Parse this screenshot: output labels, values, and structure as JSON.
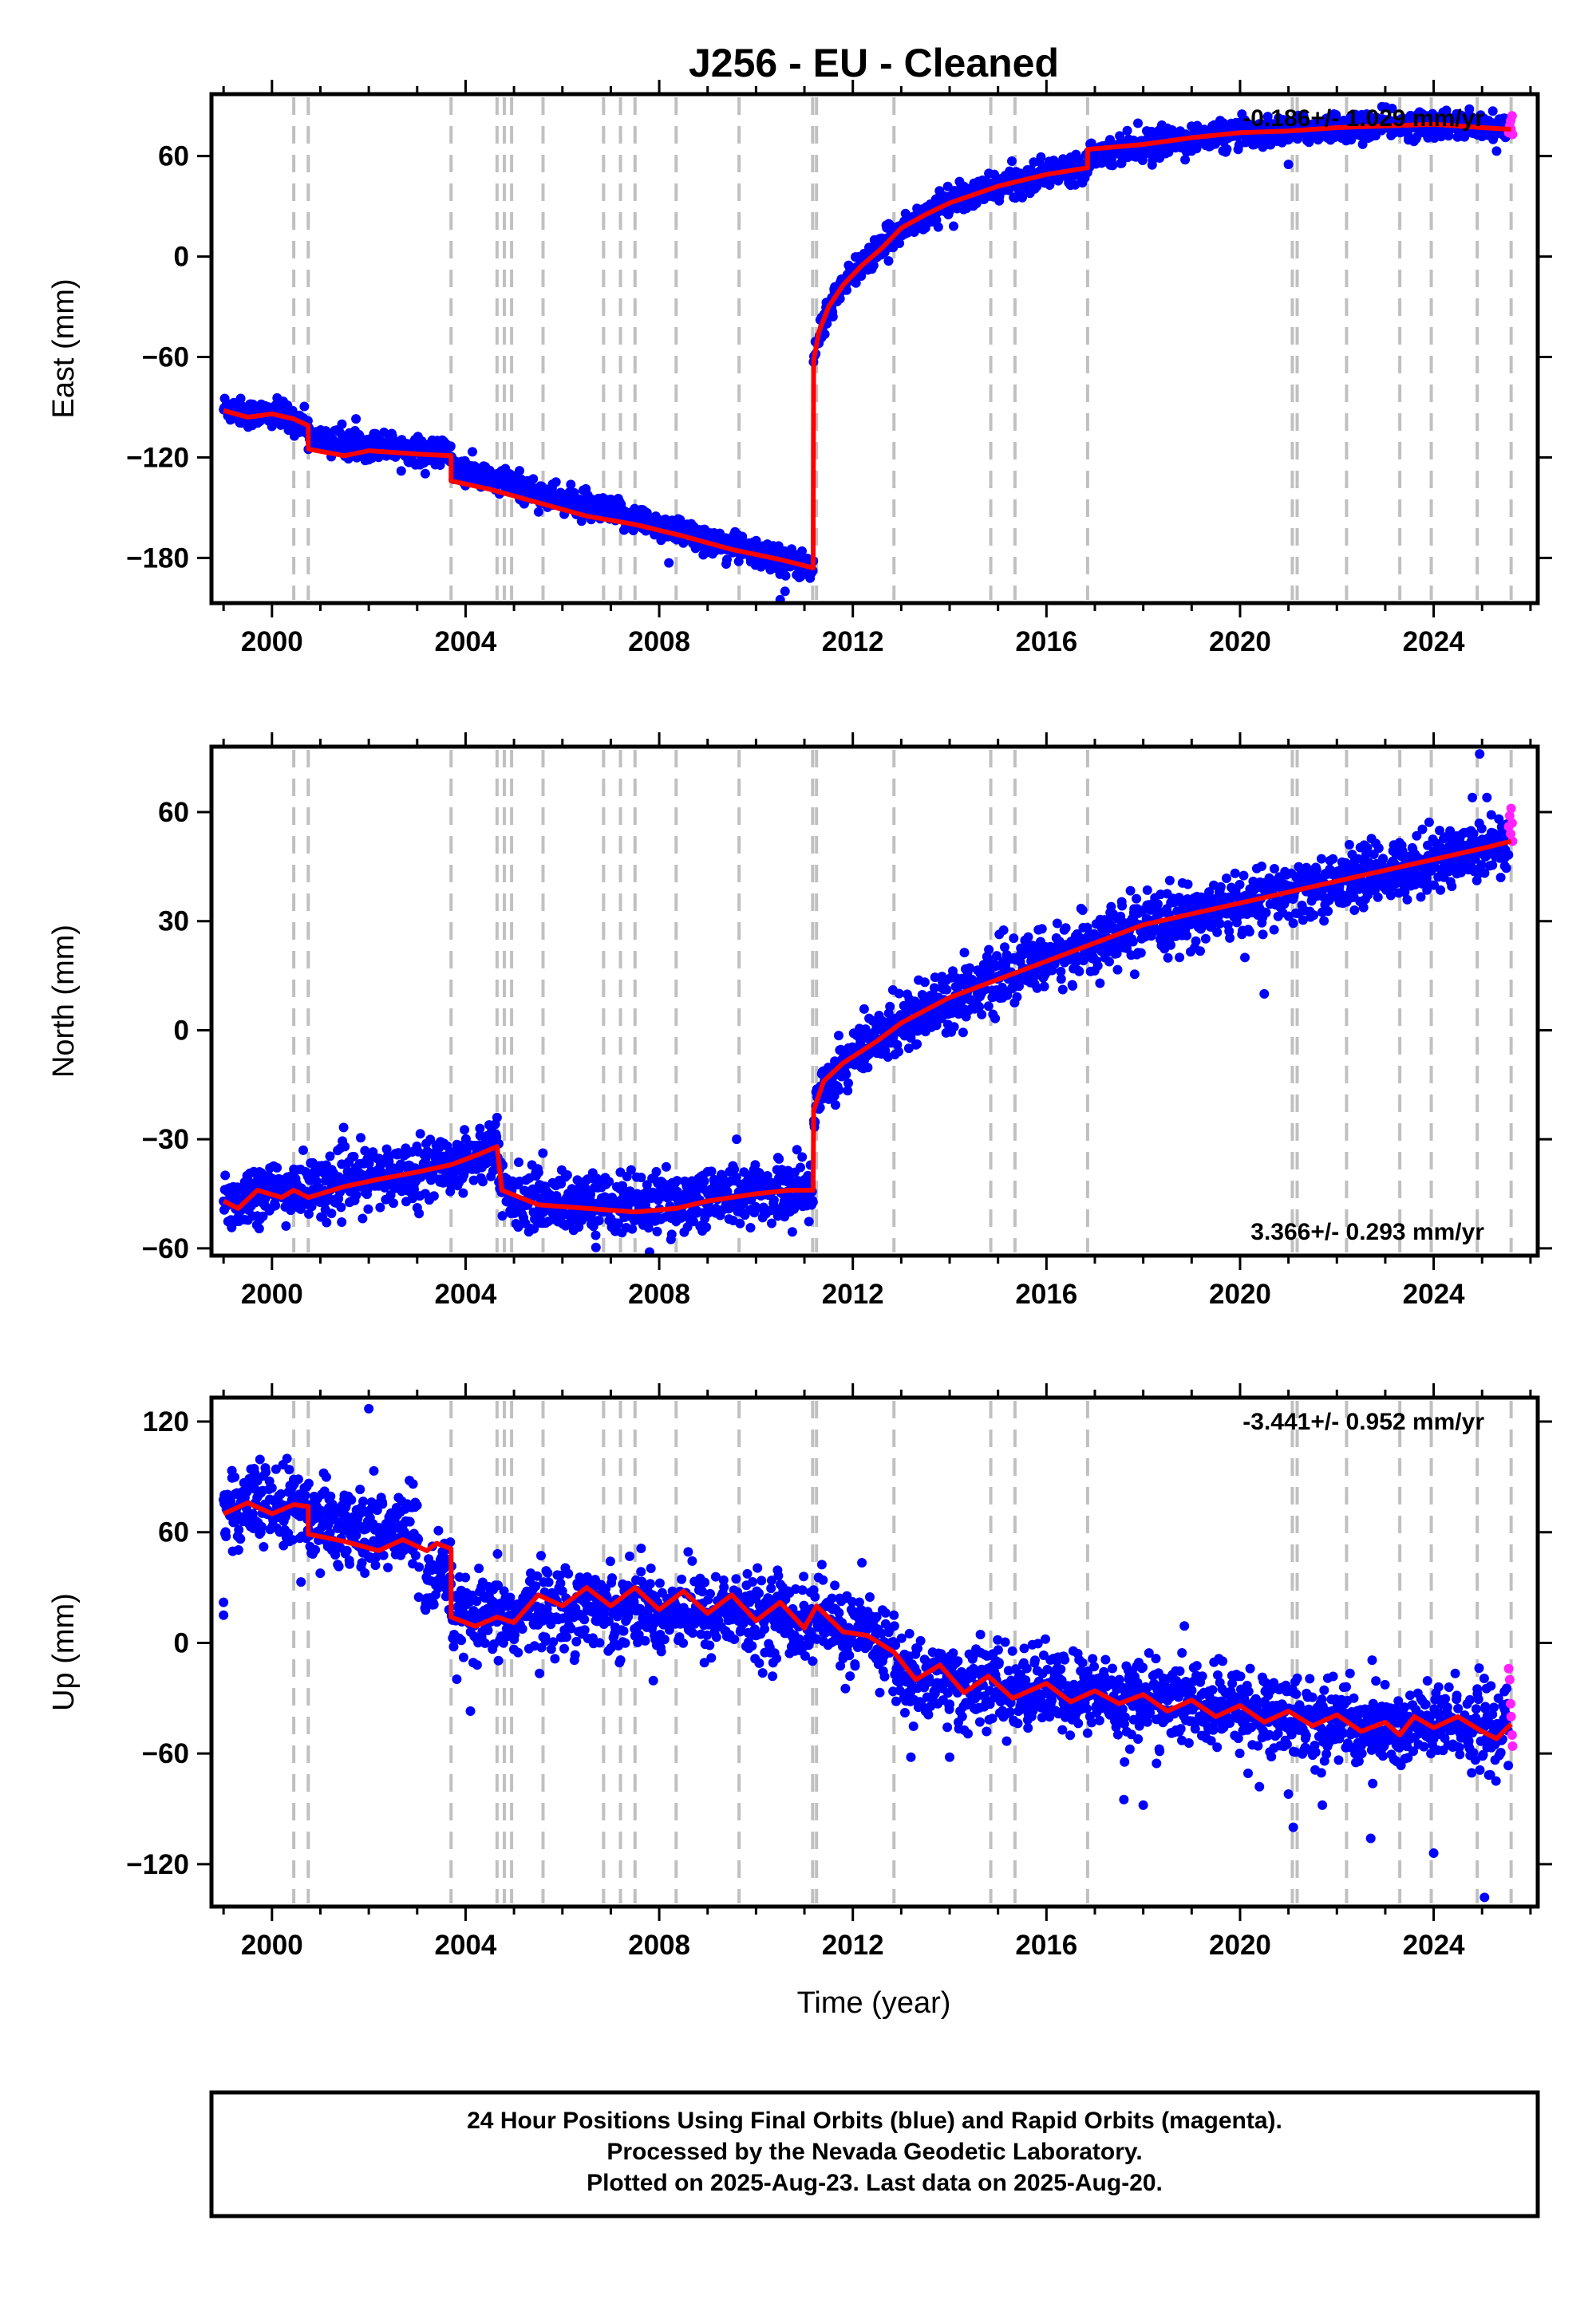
{
  "title": "J256  - EU - Cleaned",
  "xlabel": "Time (year)",
  "caption": {
    "line1": "24 Hour Positions Using Final Orbits (blue) and Rapid Orbits (magenta).",
    "line2": "Processed by the Nevada Geodetic Laboratory.",
    "line3": "Plotted on 2025-Aug-23. Last data on 2025-Aug-20."
  },
  "colors": {
    "final": "#0000ff",
    "rapid": "#ff22ff",
    "model": "#ff0000",
    "events": "#c0c0c0"
  },
  "chart_data": [
    {
      "type": "scatter",
      "name": "east",
      "ylabel": "East (mm)",
      "rate": "-0.186+/- 1.029 mm/yr",
      "rate_position": "top-right",
      "xlim": [
        1998.75,
        2026.15
      ],
      "ylim": [
        -207,
        97
      ],
      "xticks": [
        "2000",
        "2004",
        "2008",
        "2012",
        "2016",
        "2020",
        "2024"
      ],
      "yticks": [
        "60",
        "0",
        "−60",
        "−120",
        "−180"
      ],
      "ytick_values": [
        60,
        0,
        -60,
        -120,
        -180
      ],
      "event_lines": [
        2000.45,
        2000.75,
        2003.7,
        2004.65,
        2004.8,
        2004.95,
        2005.6,
        2006.85,
        2007.2,
        2007.5,
        2008.35,
        2009.65,
        2011.17,
        2011.25,
        2012.85,
        2014.85,
        2015.35,
        2016.85,
        2021.08,
        2021.18,
        2022.2,
        2023.3,
        2023.95,
        2024.9,
        2025.6
      ],
      "model": [
        [
          1999.0,
          -92
        ],
        [
          1999.5,
          -96
        ],
        [
          2000.0,
          -94
        ],
        [
          2000.45,
          -97
        ],
        [
          2000.75,
          -101
        ],
        [
          2000.75,
          -115
        ],
        [
          2001.5,
          -119
        ],
        [
          2002.0,
          -116
        ],
        [
          2003.0,
          -118
        ],
        [
          2003.7,
          -119
        ],
        [
          2003.7,
          -134
        ],
        [
          2004.5,
          -139
        ],
        [
          2005.5,
          -147
        ],
        [
          2006.5,
          -155
        ],
        [
          2007.5,
          -160
        ],
        [
          2008.5,
          -167
        ],
        [
          2009.5,
          -175
        ],
        [
          2010.5,
          -181
        ],
        [
          2011.18,
          -186
        ],
        [
          2011.19,
          -62
        ],
        [
          2011.3,
          -45
        ],
        [
          2011.5,
          -30
        ],
        [
          2011.8,
          -17
        ],
        [
          2012.2,
          -5
        ],
        [
          2012.6,
          5
        ],
        [
          2013.0,
          17
        ],
        [
          2013.5,
          25
        ],
        [
          2014.0,
          32
        ],
        [
          2015.0,
          42
        ],
        [
          2016.0,
          49
        ],
        [
          2016.85,
          53
        ],
        [
          2016.85,
          64
        ],
        [
          2018.0,
          67
        ],
        [
          2019.0,
          71
        ],
        [
          2020.0,
          74
        ],
        [
          2021.0,
          75
        ],
        [
          2022.0,
          77
        ],
        [
          2023.0,
          78
        ],
        [
          2024.0,
          79
        ],
        [
          2025.0,
          77
        ],
        [
          2025.6,
          76
        ]
      ],
      "scatter_model": [
        [
          1999.0,
          -88
        ],
        [
          2000.75,
          -100
        ],
        [
          2003.7,
          -117
        ],
        [
          2011.18,
          -187
        ],
        [
          2011.19,
          -62
        ],
        [
          2011.5,
          -30
        ],
        [
          2012.0,
          -10
        ],
        [
          2013.0,
          17
        ],
        [
          2014.0,
          33
        ],
        [
          2016.0,
          50
        ],
        [
          2018.0,
          66
        ],
        [
          2020.0,
          73
        ],
        [
          2022.0,
          77
        ],
        [
          2024.0,
          80
        ],
        [
          2025.6,
          76
        ]
      ],
      "noise": 4,
      "outliers": [
        [
          2010.5,
          -205
        ],
        [
          2010.6,
          -200
        ],
        [
          2008.2,
          -183
        ],
        [
          2021.0,
          55
        ],
        [
          2025.3,
          63
        ],
        [
          2004.8,
          -131
        ],
        [
          2009.4,
          -181
        ]
      ],
      "rapid": [
        [
          2025.55,
          74
        ],
        [
          2025.57,
          78
        ],
        [
          2025.59,
          81
        ],
        [
          2025.6,
          76
        ],
        [
          2025.62,
          84
        ],
        [
          2025.63,
          73
        ]
      ]
    },
    {
      "type": "scatter",
      "name": "north",
      "ylabel": "North (mm)",
      "rate": "3.366+/- 0.293 mm/yr",
      "rate_position": "bottom-right",
      "xlim": [
        1998.75,
        2026.15
      ],
      "ylim": [
        -62,
        78
      ],
      "xticks": [
        "2000",
        "2004",
        "2008",
        "2012",
        "2016",
        "2020",
        "2024"
      ],
      "yticks": [
        "60",
        "30",
        "0",
        "−30",
        "−60"
      ],
      "ytick_values": [
        60,
        30,
        0,
        -30,
        -60
      ],
      "event_lines": [
        2000.45,
        2000.75,
        2003.7,
        2004.65,
        2004.8,
        2004.95,
        2005.6,
        2006.85,
        2007.2,
        2007.5,
        2008.35,
        2009.65,
        2011.17,
        2011.25,
        2012.85,
        2014.85,
        2015.35,
        2016.85,
        2021.08,
        2021.18,
        2022.2,
        2023.3,
        2023.95,
        2024.9,
        2025.6
      ],
      "model": [
        [
          1999.0,
          -47
        ],
        [
          1999.3,
          -49
        ],
        [
          1999.7,
          -44
        ],
        [
          2000.2,
          -46
        ],
        [
          2000.45,
          -44
        ],
        [
          2000.75,
          -46
        ],
        [
          2001.5,
          -43
        ],
        [
          2002.2,
          -41
        ],
        [
          2003.0,
          -39
        ],
        [
          2003.7,
          -37
        ],
        [
          2004.3,
          -34
        ],
        [
          2004.65,
          -32
        ],
        [
          2004.75,
          -44
        ],
        [
          2005.5,
          -48
        ],
        [
          2006.5,
          -49
        ],
        [
          2007.5,
          -50
        ],
        [
          2008.35,
          -49
        ],
        [
          2009.0,
          -47
        ],
        [
          2010.0,
          -45
        ],
        [
          2010.7,
          -44
        ],
        [
          2011.18,
          -44
        ],
        [
          2011.19,
          -22
        ],
        [
          2011.4,
          -14
        ],
        [
          2011.8,
          -9
        ],
        [
          2012.5,
          -3
        ],
        [
          2013.0,
          2
        ],
        [
          2014.0,
          9
        ],
        [
          2015.0,
          14
        ],
        [
          2016.0,
          19
        ],
        [
          2017.0,
          24
        ],
        [
          2018.0,
          29
        ],
        [
          2019.0,
          32
        ],
        [
          2020.0,
          35
        ],
        [
          2021.0,
          38
        ],
        [
          2022.0,
          41
        ],
        [
          2023.0,
          44
        ],
        [
          2024.0,
          47
        ],
        [
          2025.0,
          50
        ],
        [
          2025.6,
          52
        ]
      ],
      "scatter_model": [
        [
          1999.0,
          -45
        ],
        [
          2003.7,
          -37
        ],
        [
          2004.65,
          -32
        ],
        [
          2004.75,
          -46
        ],
        [
          2011.18,
          -44
        ],
        [
          2011.19,
          -22
        ],
        [
          2011.8,
          -9
        ],
        [
          2013.0,
          3
        ],
        [
          2016.0,
          20
        ],
        [
          2019.0,
          31
        ],
        [
          2022.0,
          40
        ],
        [
          2025.6,
          52
        ]
      ],
      "noise": 4,
      "outliers": [
        [
          2024.95,
          76
        ],
        [
          2024.8,
          64
        ],
        [
          2025.1,
          64
        ],
        [
          2020.5,
          10
        ],
        [
          2020.1,
          20
        ],
        [
          2004.65,
          -24
        ],
        [
          2009.6,
          -30
        ],
        [
          2007.8,
          -61
        ]
      ],
      "rapid": [
        [
          2025.55,
          56
        ],
        [
          2025.57,
          59
        ],
        [
          2025.59,
          54
        ],
        [
          2025.6,
          61
        ],
        [
          2025.62,
          57
        ],
        [
          2025.63,
          52
        ]
      ]
    },
    {
      "type": "scatter",
      "name": "up",
      "ylabel": "Up (mm)",
      "rate": "-3.441+/- 0.952 mm/yr",
      "rate_position": "top-right",
      "xlim": [
        1998.75,
        2026.15
      ],
      "ylim": [
        -143,
        133
      ],
      "xticks": [
        "2000",
        "2004",
        "2008",
        "2012",
        "2016",
        "2020",
        "2024"
      ],
      "yticks": [
        "120",
        "60",
        "0",
        "−60",
        "−120"
      ],
      "ytick_values": [
        120,
        60,
        0,
        -60,
        -120
      ],
      "event_lines": [
        2000.45,
        2000.75,
        2003.7,
        2004.65,
        2004.8,
        2004.95,
        2005.6,
        2006.85,
        2007.2,
        2007.5,
        2008.35,
        2009.65,
        2011.17,
        2011.25,
        2012.85,
        2014.85,
        2015.35,
        2016.85,
        2021.08,
        2021.18,
        2022.2,
        2023.3,
        2023.95,
        2024.9,
        2025.6
      ],
      "model": [
        [
          1999.0,
          70
        ],
        [
          1999.5,
          76
        ],
        [
          2000.0,
          70
        ],
        [
          2000.45,
          75
        ],
        [
          2000.75,
          74
        ],
        [
          2000.75,
          59
        ],
        [
          2001.5,
          55
        ],
        [
          2002.2,
          50
        ],
        [
          2002.7,
          56
        ],
        [
          2003.2,
          50
        ],
        [
          2003.4,
          54
        ],
        [
          2003.7,
          51
        ],
        [
          2003.7,
          14
        ],
        [
          2004.2,
          9
        ],
        [
          2004.65,
          14
        ],
        [
          2005.0,
          11
        ],
        [
          2005.5,
          26
        ],
        [
          2006.0,
          20
        ],
        [
          2006.5,
          30
        ],
        [
          2007.0,
          20
        ],
        [
          2007.5,
          30
        ],
        [
          2008.0,
          18
        ],
        [
          2008.5,
          28
        ],
        [
          2009.0,
          16
        ],
        [
          2009.5,
          26
        ],
        [
          2010.0,
          12
        ],
        [
          2010.5,
          22
        ],
        [
          2011.0,
          8
        ],
        [
          2011.25,
          20
        ],
        [
          2011.8,
          6
        ],
        [
          2012.3,
          4
        ],
        [
          2012.85,
          -5
        ],
        [
          2013.3,
          -20
        ],
        [
          2013.8,
          -12
        ],
        [
          2014.3,
          -27
        ],
        [
          2014.8,
          -18
        ],
        [
          2015.3,
          -30
        ],
        [
          2016.0,
          -22
        ],
        [
          2016.5,
          -32
        ],
        [
          2017.0,
          -26
        ],
        [
          2017.5,
          -33
        ],
        [
          2018.0,
          -28
        ],
        [
          2018.5,
          -37
        ],
        [
          2019.0,
          -31
        ],
        [
          2019.5,
          -40
        ],
        [
          2020.0,
          -34
        ],
        [
          2020.5,
          -43
        ],
        [
          2021.0,
          -37
        ],
        [
          2021.5,
          -45
        ],
        [
          2022.0,
          -39
        ],
        [
          2022.5,
          -48
        ],
        [
          2023.0,
          -43
        ],
        [
          2023.3,
          -50
        ],
        [
          2023.6,
          -40
        ],
        [
          2024.0,
          -46
        ],
        [
          2024.5,
          -40
        ],
        [
          2025.0,
          -48
        ],
        [
          2025.3,
          -52
        ],
        [
          2025.6,
          -44
        ]
      ],
      "scatter_model": [
        [
          1999.0,
          75
        ],
        [
          2003.0,
          70
        ],
        [
          2003.05,
          5
        ],
        [
          2003.7,
          14
        ],
        [
          2011.2,
          10
        ],
        [
          2012.85,
          0
        ],
        [
          2012.9,
          -25
        ],
        [
          2016.0,
          -25
        ],
        [
          2020.0,
          -35
        ],
        [
          2023.3,
          -48
        ],
        [
          2025.6,
          -45
        ]
      ],
      "noise": 11,
      "outliers": [
        [
          2002.0,
          127
        ],
        [
          1999.0,
          15
        ],
        [
          1999.0,
          22
        ],
        [
          2000.6,
          33
        ],
        [
          2004.1,
          -37
        ],
        [
          2013.2,
          -62
        ],
        [
          2014.0,
          -62
        ],
        [
          2018.0,
          -88
        ],
        [
          2020.4,
          -78
        ],
        [
          2021.0,
          -82
        ],
        [
          2021.7,
          -88
        ],
        [
          2022.7,
          -106
        ],
        [
          2024.0,
          -114
        ],
        [
          2025.05,
          -138
        ],
        [
          2024.9,
          -25
        ],
        [
          2021.1,
          -100
        ],
        [
          2017.6,
          -85
        ]
      ],
      "rapid": [
        [
          2025.55,
          -14
        ],
        [
          2025.57,
          -20
        ],
        [
          2025.59,
          -33
        ],
        [
          2025.6,
          -40
        ],
        [
          2025.62,
          -50
        ],
        [
          2025.63,
          -56
        ]
      ]
    }
  ]
}
